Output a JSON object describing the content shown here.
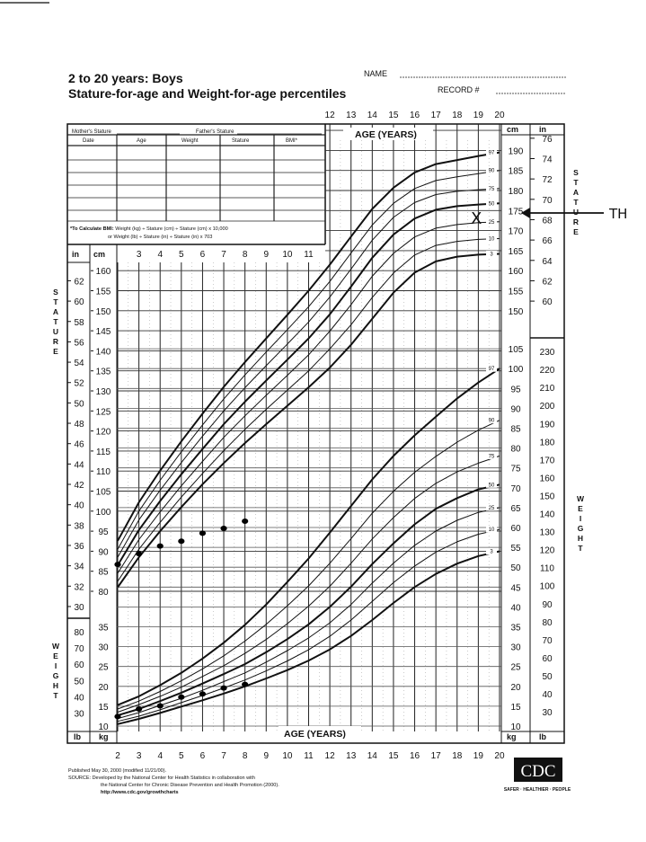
{
  "header": {
    "title_line1": "2 to 20 years: Boys",
    "title_line2": "Stature-for-age and Weight-for-age percentiles",
    "name_label": "NAME",
    "record_label": "RECORD #"
  },
  "table": {
    "mothers_stature": "Mother's Stature",
    "fathers_stature": "Father's Stature",
    "columns": [
      "Date",
      "Age",
      "Weight",
      "Stature",
      "BMI*"
    ],
    "bmi_note_bold": "*To Calculate BMI:",
    "bmi_note_1": "Weight (kg) ÷ Stature (cm) ÷ Stature (cm) x 10,000",
    "bmi_note_2": "or Weight (lb) ÷ Stature (in) ÷ Stature (in) x 703"
  },
  "labels": {
    "age_years": "AGE (YEARS)",
    "stature": "STATURE",
    "weight": "WEIGHT",
    "cm": "cm",
    "in": "in",
    "kg": "kg",
    "lb": "lb"
  },
  "annotation": {
    "mark": "X",
    "initials": "TH"
  },
  "footer": {
    "published": "Published May 30, 2000 (modified 11/21/00).",
    "source_1": "SOURCE: Developed by the National Center for Health Statistics in collaboration with",
    "source_2": "the National Center for Chronic Disease Prevention and Health Promotion (2000).",
    "url": "http://www.cdc.gov/growthcharts",
    "logo": "CDC",
    "tagline": "SAFER · HEALTHIER · PEOPLE"
  },
  "chart_data": {
    "type": "line",
    "title": "Stature-for-age and Weight-for-age percentiles, 2 to 20 years: Boys",
    "xlabel": "AGE (YEARS)",
    "xlim": [
      2,
      20
    ],
    "x": [
      2,
      3,
      4,
      5,
      6,
      7,
      8,
      9,
      10,
      11,
      12,
      13,
      14,
      15,
      16,
      17,
      18,
      19,
      20
    ],
    "ticks": {
      "age_top": [
        12,
        13,
        14,
        15,
        16,
        17,
        18,
        19,
        20
      ],
      "age_mid": [
        3,
        4,
        5,
        6,
        7,
        8,
        9,
        10,
        11
      ],
      "age_bottom": [
        2,
        3,
        4,
        5,
        6,
        7,
        8,
        9,
        10,
        11,
        12,
        13,
        14,
        15,
        16,
        17,
        18,
        19,
        20
      ],
      "stature_cm_left": [
        80,
        85,
        90,
        95,
        100,
        105,
        110,
        115,
        120,
        125,
        130,
        135,
        140,
        145,
        150,
        155,
        160
      ],
      "stature_cm_right": [
        150,
        155,
        160,
        165,
        170,
        175,
        180,
        185,
        190
      ],
      "stature_in_left": [
        30,
        32,
        34,
        36,
        38,
        40,
        42,
        44,
        46,
        48,
        50,
        52,
        54,
        56,
        58,
        60,
        62
      ],
      "stature_in_right": [
        60,
        62,
        64,
        66,
        68,
        70,
        72,
        74,
        76
      ],
      "weight_kg_left": [
        10,
        15,
        20,
        25,
        30,
        35
      ],
      "weight_kg_right": [
        10,
        15,
        20,
        25,
        30,
        35,
        40,
        45,
        50,
        55,
        60,
        65,
        70,
        75,
        80,
        85,
        90,
        95,
        100,
        105
      ],
      "weight_lb_left": [
        30,
        40,
        50,
        60,
        70,
        80
      ],
      "weight_lb_right": [
        30,
        40,
        50,
        60,
        70,
        80,
        90,
        100,
        110,
        120,
        130,
        140,
        150,
        160,
        170,
        180,
        190,
        200,
        210,
        220,
        230
      ]
    },
    "stature_percentiles_cm": [
      {
        "name": "97",
        "values": [
          92.6,
          102.2,
          110.1,
          117.4,
          124.3,
          131.0,
          137.2,
          143.1,
          149.0,
          155.0,
          161.5,
          168.5,
          175.4,
          180.7,
          184.5,
          186.6,
          187.6,
          188.6,
          189.5
        ]
      },
      {
        "name": "90",
        "values": [
          90.5,
          100.0,
          107.7,
          114.8,
          121.5,
          128.0,
          134.0,
          139.7,
          145.3,
          151.0,
          157.3,
          164.4,
          171.4,
          176.8,
          180.5,
          182.5,
          183.4,
          184.2,
          185.0
        ]
      },
      {
        "name": "75",
        "values": [
          88.5,
          97.8,
          105.2,
          112.1,
          118.7,
          125.0,
          130.8,
          136.3,
          141.7,
          147.2,
          153.4,
          160.4,
          167.6,
          173.3,
          177.0,
          179.0,
          179.8,
          180.2,
          180.5
        ]
      },
      {
        "name": "50",
        "values": [
          86.5,
          95.3,
          102.5,
          109.2,
          115.5,
          121.7,
          127.3,
          132.6,
          137.8,
          143.1,
          149.1,
          156.0,
          163.2,
          169.0,
          173.0,
          175.2,
          176.1,
          176.5,
          176.8
        ]
      },
      {
        "name": "25",
        "values": [
          84.5,
          92.9,
          99.8,
          106.3,
          112.4,
          118.4,
          123.8,
          128.9,
          133.9,
          139.0,
          144.9,
          151.5,
          158.6,
          164.3,
          168.4,
          170.6,
          171.5,
          172.0,
          172.2
        ]
      },
      {
        "name": "10",
        "values": [
          82.5,
          90.5,
          97.2,
          103.5,
          109.4,
          115.1,
          120.4,
          125.4,
          130.2,
          135.0,
          140.5,
          146.5,
          153.3,
          159.4,
          163.9,
          166.3,
          167.3,
          167.8,
          168.0
        ]
      },
      {
        "name": "3",
        "values": [
          81.0,
          88.5,
          95.0,
          101.0,
          106.7,
          112.0,
          117.0,
          121.7,
          126.3,
          130.9,
          135.8,
          141.5,
          148.0,
          154.5,
          159.5,
          162.3,
          163.5,
          164.0,
          164.2
        ]
      }
    ],
    "weight_percentiles_kg": [
      {
        "name": "97",
        "values": [
          15.3,
          17.5,
          20.3,
          23.4,
          27.0,
          31.0,
          35.5,
          40.6,
          46.3,
          52.2,
          58.7,
          65.4,
          72.1,
          78.0,
          83.2,
          87.9,
          92.5,
          96.5,
          100.0
        ]
      },
      {
        "name": "90",
        "values": [
          14.3,
          16.3,
          18.7,
          21.4,
          24.4,
          27.7,
          31.4,
          35.6,
          40.3,
          45.3,
          51.0,
          57.2,
          63.6,
          69.1,
          73.9,
          77.9,
          81.5,
          84.5,
          87.0
        ]
      },
      {
        "name": "75",
        "values": [
          13.5,
          15.4,
          17.5,
          19.8,
          22.5,
          25.2,
          28.3,
          31.8,
          35.8,
          40.2,
          45.2,
          51.0,
          57.1,
          62.5,
          67.3,
          71.1,
          74.0,
          76.2,
          78.0
        ]
      },
      {
        "name": "50",
        "values": [
          12.7,
          14.3,
          16.3,
          18.4,
          20.7,
          23.1,
          25.6,
          28.6,
          31.9,
          35.6,
          40.0,
          45.1,
          50.8,
          56.0,
          60.8,
          64.7,
          67.4,
          69.6,
          70.8
        ]
      },
      {
        "name": "25",
        "values": [
          11.9,
          13.4,
          15.2,
          17.0,
          19.0,
          21.2,
          23.4,
          26.1,
          29.0,
          32.2,
          36.0,
          40.6,
          46.0,
          51.0,
          55.5,
          59.1,
          61.8,
          63.8,
          65.0
        ]
      },
      {
        "name": "10",
        "values": [
          11.2,
          12.5,
          14.1,
          15.9,
          17.7,
          19.6,
          21.6,
          23.9,
          26.4,
          29.2,
          32.6,
          36.7,
          41.4,
          46.1,
          50.3,
          53.8,
          56.4,
          58.3,
          59.5
        ]
      },
      {
        "name": "3",
        "values": [
          10.5,
          11.8,
          13.3,
          14.9,
          16.5,
          18.2,
          20.0,
          22.0,
          24.1,
          26.5,
          29.3,
          32.7,
          36.7,
          41.0,
          45.0,
          48.3,
          50.9,
          52.8,
          54.0
        ]
      }
    ],
    "measured_stature_cm": {
      "ages": [
        2,
        3,
        4,
        5,
        6,
        7,
        8
      ],
      "values": [
        86.7,
        89.4,
        91.3,
        92.5,
        94.5,
        95.7,
        97.5
      ]
    },
    "measured_weight_kg": {
      "ages": [
        2,
        3,
        4,
        5,
        6,
        7,
        8
      ],
      "values": [
        12.4,
        14.3,
        15.1,
        17.3,
        18.1,
        19.6,
        20.5
      ]
    },
    "annotated_target_stature_cm": 172
  }
}
